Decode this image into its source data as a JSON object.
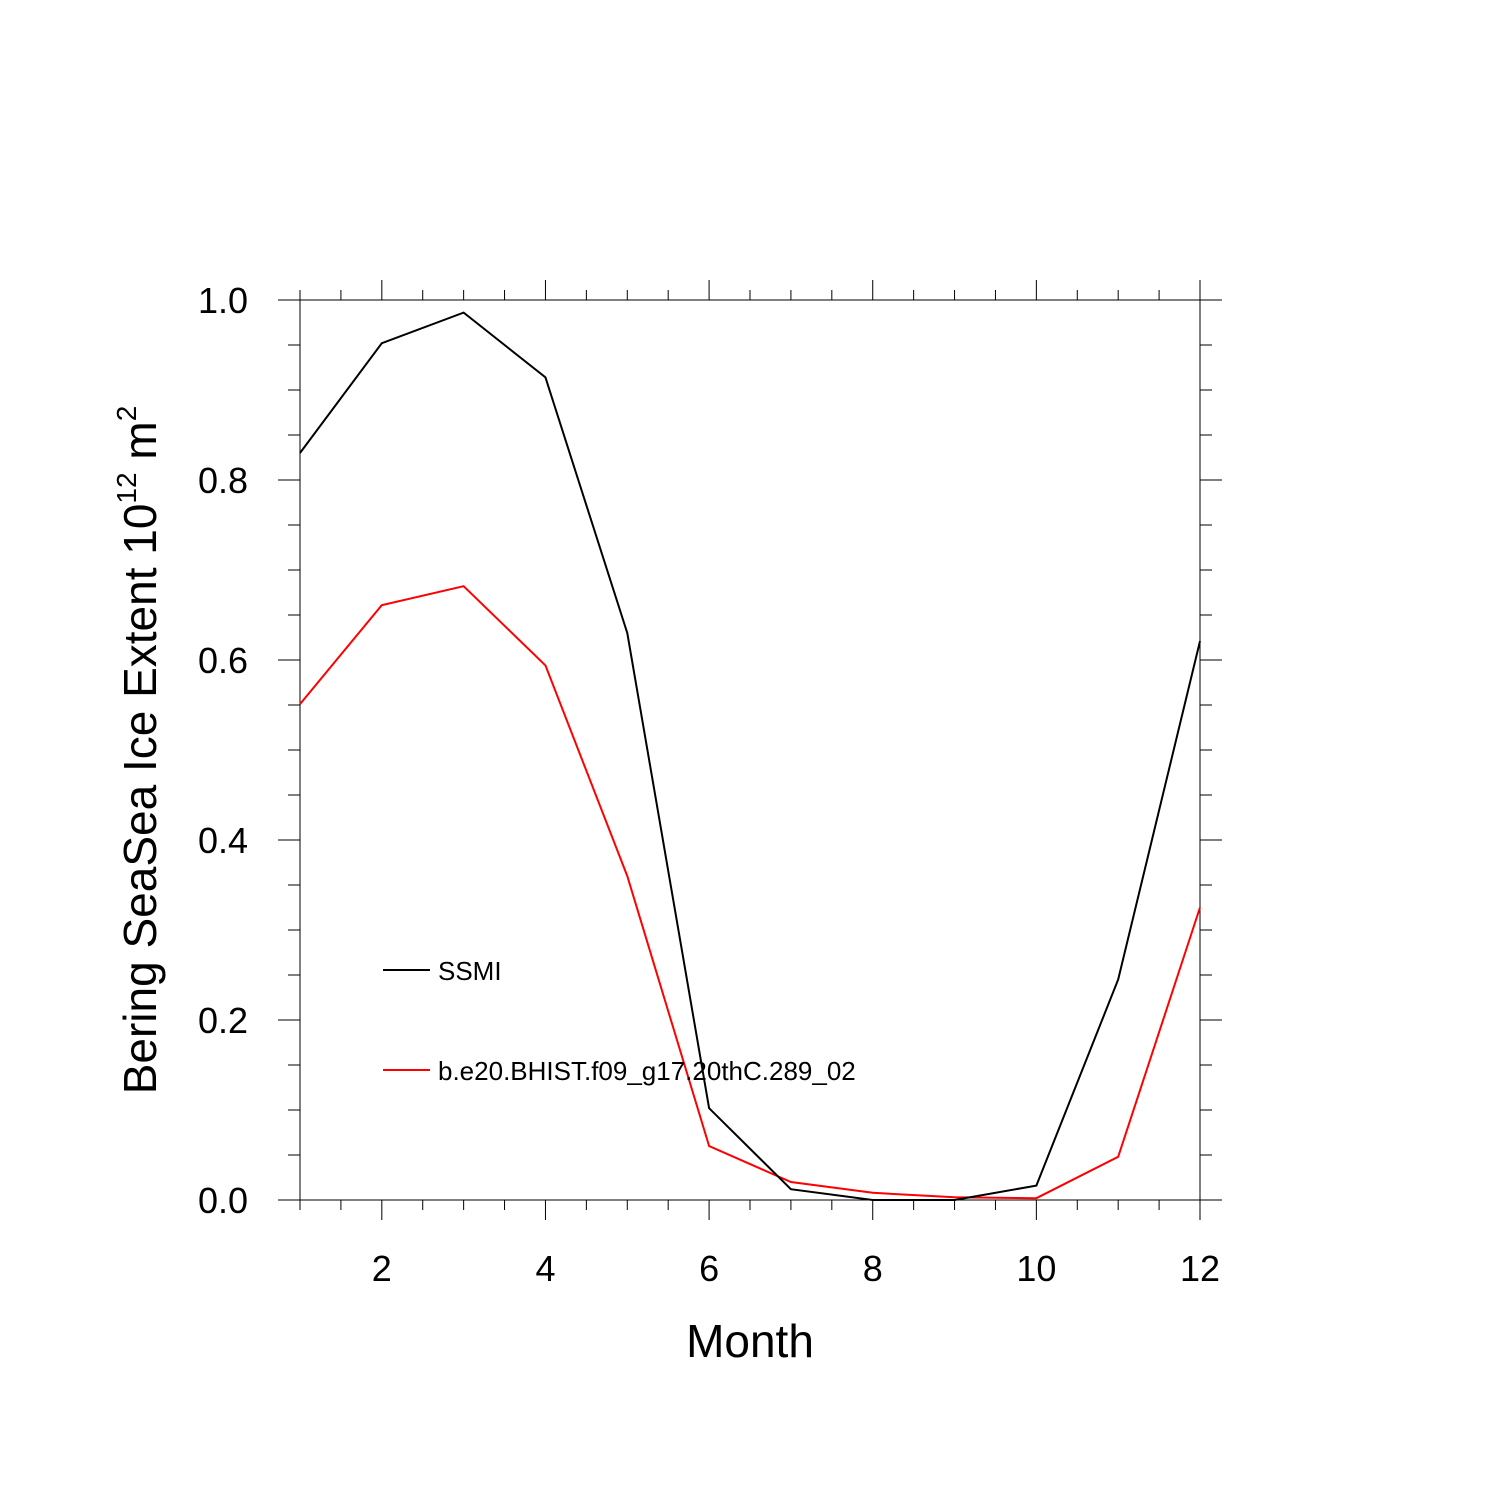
{
  "chart_data": {
    "type": "line",
    "title": "",
    "xlabel": "Month",
    "ylabel": {
      "prefix": "Bering SeaSea Ice Extent 10",
      "exponent": "12",
      "unit": " m",
      "unit_exponent": "2"
    },
    "xlim": [
      1,
      12
    ],
    "ylim": [
      0,
      1
    ],
    "xticks": [
      2,
      4,
      6,
      8,
      10,
      12
    ],
    "xtick_labels": [
      "2",
      "4",
      "6",
      "8",
      "10",
      "12"
    ],
    "yticks": [
      0,
      0.2,
      0.4,
      0.6,
      0.8,
      1.0
    ],
    "ytick_labels": [
      "0.0",
      "0.2",
      "0.4",
      "0.6",
      "0.8",
      "1.0"
    ],
    "x": [
      1,
      2,
      3,
      4,
      5,
      6,
      7,
      8,
      9,
      10,
      11,
      12
    ],
    "series": [
      {
        "name": "SSMI",
        "color": "#000000",
        "values": [
          0.83,
          0.952,
          0.986,
          0.914,
          0.63,
          0.102,
          0.012,
          0.0,
          0.0,
          0.016,
          0.245,
          0.621
        ]
      },
      {
        "name": "b.e20.BHIST.f09_g17.20thC.289_02",
        "color": "#ff0000",
        "values": [
          0.551,
          0.661,
          0.682,
          0.594,
          0.36,
          0.06,
          0.02,
          0.008,
          0.003,
          0.002,
          0.048,
          0.325
        ]
      }
    ],
    "legend_position": "center-left",
    "grid": false
  }
}
